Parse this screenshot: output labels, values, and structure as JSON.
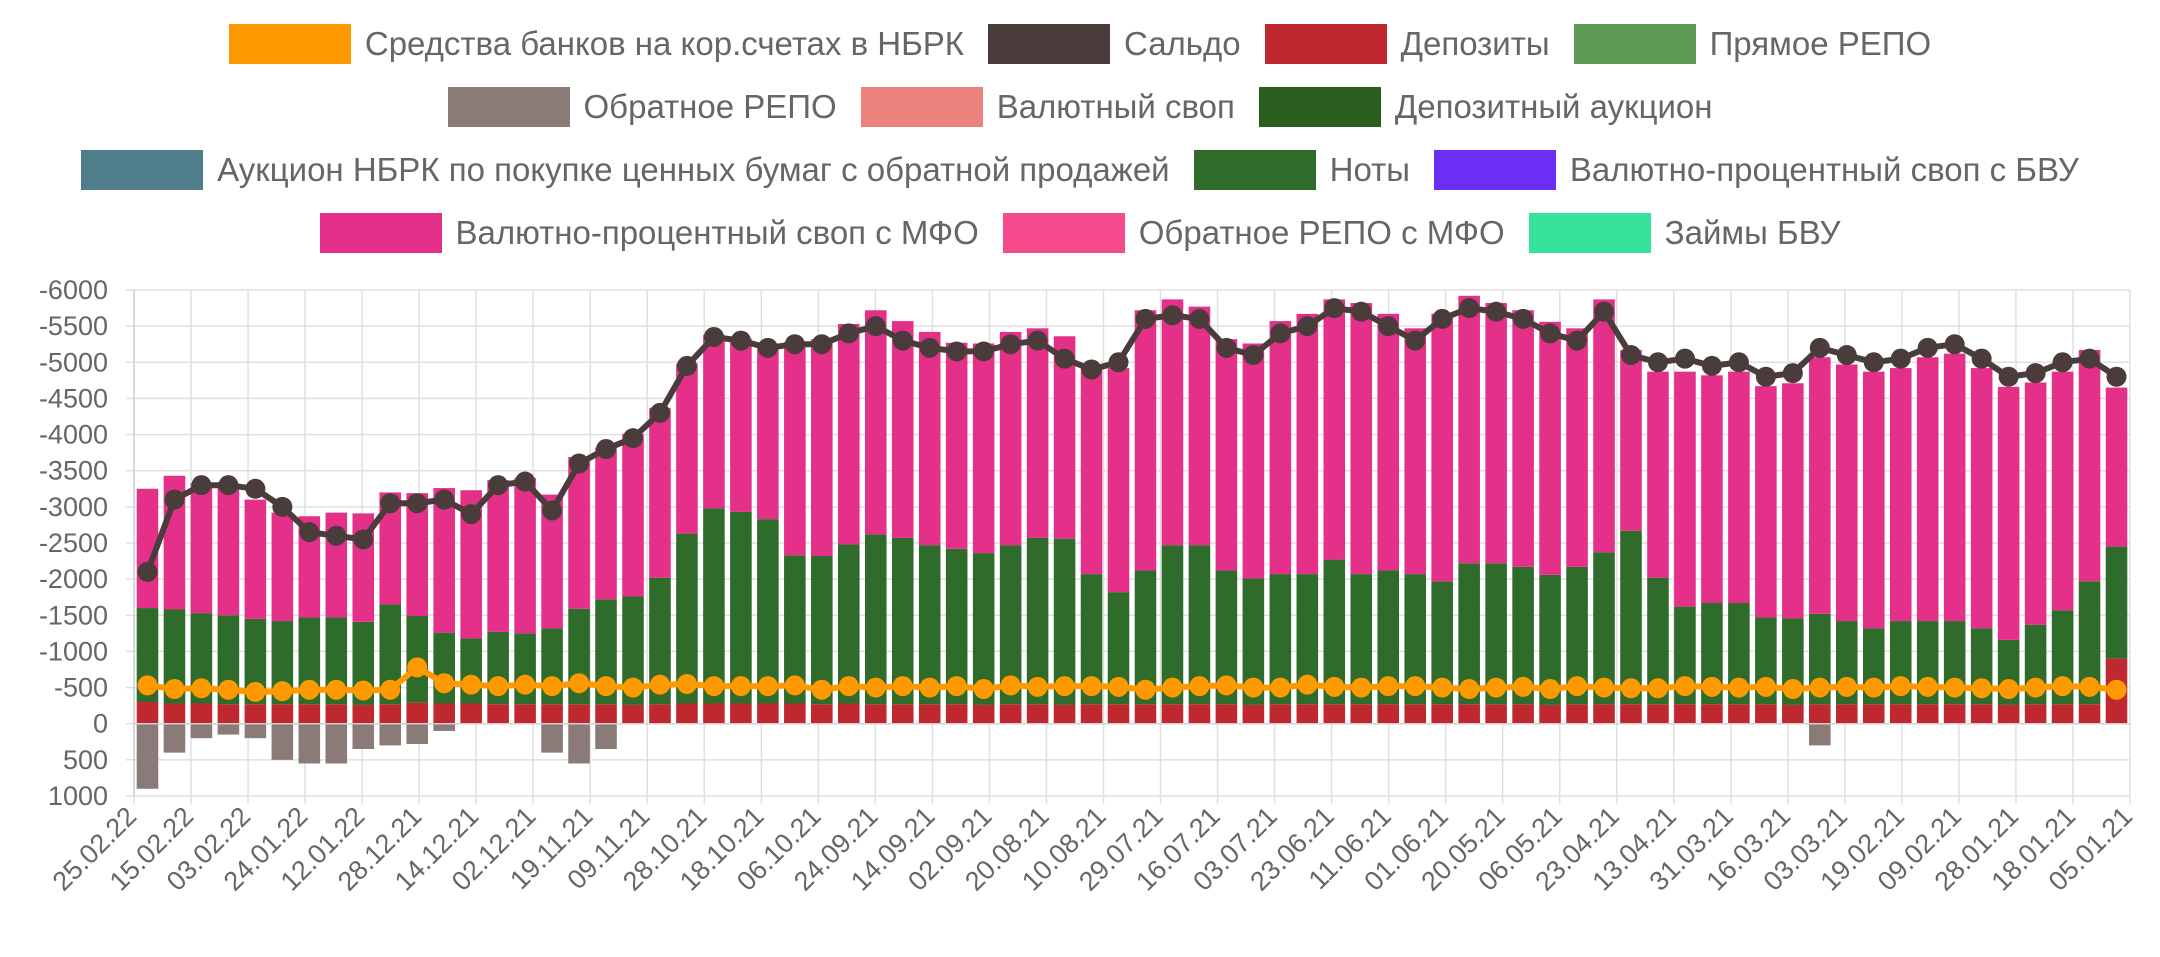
{
  "chart_data": {
    "type": "bar",
    "stacked": true,
    "title": "",
    "xlabel": "",
    "ylabel": "",
    "y_reversed": true,
    "ylim": [
      1000,
      -6000
    ],
    "yticks": [
      -6000,
      -5500,
      -5000,
      -4500,
      -4000,
      -3500,
      -3000,
      -2500,
      -2000,
      -1500,
      -1000,
      -500,
      0,
      500,
      1000
    ],
    "grid": true,
    "legend_position": "top",
    "x_tick_labels": [
      "25.02.22",
      "15.02.22",
      "03.02.22",
      "24.01.22",
      "12.01.22",
      "28.12.21",
      "14.12.21",
      "02.12.21",
      "19.11.21",
      "09.11.21",
      "28.10.21",
      "18.10.21",
      "06.10.21",
      "24.09.21",
      "14.09.21",
      "02.09.21",
      "20.08.21",
      "10.08.21",
      "29.07.21",
      "16.07.21",
      "03.07.21",
      "23.06.21",
      "11.06.21",
      "01.06.21",
      "20.05.21",
      "06.05.21",
      "23.04.21",
      "13.04.21",
      "31.03.21",
      "16.03.21",
      "03.03.21",
      "19.02.21",
      "09.02.21",
      "28.01.21",
      "18.01.21",
      "05.01.21"
    ],
    "series": [
      {
        "name": "Средства банков на кор.счетах в НБРК",
        "color": "#ff9900",
        "kind": "line",
        "values": [
          -530,
          -480,
          -490,
          -470,
          -440,
          -450,
          -470,
          -470,
          -460,
          -470,
          -780,
          -560,
          -540,
          -520,
          -540,
          -520,
          -560,
          -520,
          -500,
          -540,
          -550,
          -520,
          -520,
          -520,
          -530,
          -470,
          -520,
          -500,
          -520,
          -500,
          -520,
          -480,
          -530,
          -510,
          -520,
          -520,
          -510,
          -470,
          -500,
          -520,
          -530,
          -500,
          -500,
          -540,
          -510,
          -500,
          -520,
          -520,
          -500,
          -480,
          -500,
          -510,
          -480,
          -520,
          -500,
          -490,
          -490,
          -520,
          -510,
          -500,
          -510,
          -480,
          -500,
          -510,
          -500,
          -520,
          -510,
          -500,
          -490,
          -480,
          -500,
          -520,
          -510,
          -470
        ]
      },
      {
        "name": "Сальдо",
        "color": "#4a3c3a",
        "kind": "line",
        "values": [
          -2100,
          -3100,
          -3300,
          -3300,
          -3250,
          -3000,
          -2650,
          -2600,
          -2550,
          -3050,
          -3050,
          -3100,
          -2900,
          -3300,
          -3350,
          -2950,
          -3600,
          -3800,
          -3950,
          -4300,
          -4950,
          -5350,
          -5300,
          -5200,
          -5250,
          -5250,
          -5400,
          -5500,
          -5300,
          -5200,
          -5150,
          -5150,
          -5250,
          -5300,
          -5050,
          -4900,
          -5000,
          -5600,
          -5650,
          -5600,
          -5200,
          -5100,
          -5400,
          -5500,
          -5750,
          -5700,
          -5500,
          -5300,
          -5600,
          -5750,
          -5700,
          -5600,
          -5400,
          -5300,
          -5700,
          -5100,
          -5000,
          -5050,
          -4950,
          -5000,
          -4800,
          -4850,
          -5200,
          -5100,
          -5000,
          -5050,
          -5200,
          -5250,
          -5050,
          -4800,
          -4850,
          -5000,
          -5050,
          -4800
        ]
      },
      {
        "name": "Депозиты",
        "color": "#c0282f",
        "kind": "bar",
        "values": [
          -300,
          -280,
          -280,
          -270,
          -270,
          -270,
          -270,
          -270,
          -260,
          -270,
          -290,
          -280,
          -280,
          -270,
          -270,
          -270,
          -270,
          -270,
          -260,
          -270,
          -280,
          -280,
          -280,
          -280,
          -280,
          -270,
          -280,
          -270,
          -270,
          -270,
          -270,
          -260,
          -270,
          -270,
          -260,
          -270,
          -270,
          -270,
          -270,
          -270,
          -270,
          -260,
          -270,
          -270,
          -270,
          -270,
          -270,
          -270,
          -270,
          -270,
          -270,
          -270,
          -260,
          -270,
          -270,
          -270,
          -270,
          -270,
          -270,
          -270,
          -270,
          -260,
          -270,
          -270,
          -270,
          -270,
          -270,
          -270,
          -270,
          -260,
          -270,
          -270,
          -270,
          -900
        ]
      },
      {
        "name": "Прямое РЕПО",
        "color": "#5f9a56",
        "kind": "bar",
        "values": [
          0,
          0,
          0,
          0,
          0,
          0,
          0,
          0,
          0,
          0,
          0,
          0,
          0,
          0,
          0,
          0,
          0,
          0,
          0,
          0,
          0,
          0,
          0,
          0,
          0,
          0,
          0,
          0,
          0,
          0,
          0,
          0,
          0,
          0,
          0,
          0,
          0,
          0,
          0,
          0,
          0,
          0,
          0,
          0,
          0,
          0,
          0,
          0,
          0,
          0,
          0,
          0,
          0,
          0,
          0,
          0,
          0,
          0,
          0,
          0,
          0,
          0,
          0,
          0,
          0,
          0,
          0,
          0,
          0,
          0,
          0,
          0,
          0,
          0
        ]
      },
      {
        "name": "Обратное РЕПО",
        "color": "#8a7a78",
        "kind": "bar",
        "values": [
          900,
          400,
          200,
          150,
          200,
          500,
          550,
          550,
          350,
          300,
          280,
          100,
          0,
          0,
          0,
          400,
          550,
          350,
          0,
          0,
          0,
          0,
          0,
          0,
          0,
          0,
          0,
          0,
          0,
          0,
          0,
          0,
          0,
          0,
          0,
          0,
          0,
          0,
          0,
          0,
          0,
          0,
          0,
          0,
          0,
          0,
          0,
          0,
          0,
          0,
          0,
          0,
          0,
          0,
          0,
          0,
          0,
          0,
          0,
          0,
          0,
          0,
          300,
          0,
          0,
          0,
          0,
          0,
          0,
          0,
          0,
          0,
          0,
          0
        ]
      },
      {
        "name": "Валютный своп",
        "color": "#e8827a",
        "kind": "bar",
        "values": [
          0,
          0,
          0,
          0,
          0,
          0,
          0,
          0,
          0,
          0,
          0,
          0,
          0,
          0,
          0,
          0,
          0,
          0,
          0,
          0,
          0,
          0,
          0,
          0,
          0,
          0,
          0,
          0,
          0,
          0,
          0,
          0,
          0,
          0,
          0,
          0,
          0,
          0,
          0,
          0,
          0,
          0,
          0,
          0,
          0,
          0,
          0,
          0,
          0,
          0,
          0,
          0,
          0,
          0,
          0,
          0,
          0,
          0,
          0,
          0,
          0,
          0,
          0,
          0,
          0,
          0,
          0,
          0,
          0,
          0,
          0,
          0,
          0,
          0
        ]
      },
      {
        "name": "Депозитный аукцион",
        "color": "#2a5e1f",
        "kind": "bar",
        "values": [
          0,
          0,
          0,
          0,
          0,
          0,
          0,
          0,
          0,
          0,
          0,
          0,
          0,
          0,
          0,
          0,
          0,
          0,
          0,
          0,
          0,
          0,
          0,
          0,
          0,
          0,
          0,
          0,
          0,
          0,
          0,
          0,
          0,
          0,
          0,
          0,
          0,
          0,
          0,
          0,
          0,
          0,
          0,
          0,
          0,
          0,
          0,
          0,
          0,
          0,
          0,
          0,
          0,
          0,
          0,
          0,
          0,
          0,
          0,
          0,
          0,
          0,
          0,
          0,
          0,
          0,
          0,
          0,
          0,
          0,
          0,
          0,
          0,
          0
        ]
      },
      {
        "name": "Аукцион НБРК по покупке ценных бумаг с обратной продажей",
        "color": "#4f7d8a",
        "kind": "bar",
        "values": [
          0,
          0,
          0,
          0,
          0,
          0,
          0,
          0,
          0,
          0,
          0,
          0,
          0,
          0,
          0,
          0,
          0,
          0,
          0,
          0,
          0,
          0,
          0,
          0,
          0,
          0,
          0,
          0,
          0,
          0,
          0,
          0,
          0,
          0,
          0,
          0,
          0,
          0,
          0,
          0,
          0,
          0,
          0,
          0,
          0,
          0,
          0,
          0,
          0,
          0,
          0,
          0,
          0,
          0,
          0,
          0,
          0,
          0,
          0,
          0,
          0,
          0,
          0,
          0,
          0,
          0,
          0,
          0,
          0,
          0,
          0,
          0,
          0,
          0
        ]
      },
      {
        "name": "Ноты",
        "color": "#2f6b2a",
        "kind": "bar",
        "values": [
          -1300,
          -1300,
          -1250,
          -1230,
          -1180,
          -1150,
          -1200,
          -1200,
          -1150,
          -1380,
          -1200,
          -980,
          -900,
          -1000,
          -980,
          -1050,
          -1320,
          -1450,
          -1500,
          -1750,
          -2350,
          -2700,
          -2650,
          -2550,
          -2050,
          -2050,
          -2200,
          -2350,
          -2300,
          -2200,
          -2150,
          -2100,
          -2200,
          -2300,
          -2300,
          -1800,
          -1550,
          -1850,
          -2200,
          -2200,
          -1850,
          -1750,
          -1800,
          -1800,
          -2000,
          -1800,
          -1850,
          -1800,
          -1700,
          -1950,
          -1950,
          -1900,
          -1800,
          -1900,
          -2100,
          -2400,
          -1750,
          -1350,
          -1400,
          -1400,
          -1200,
          -1200,
          -1250,
          -1150,
          -1050,
          -1150,
          -1150,
          -1150,
          -1050,
          -900,
          -1100,
          -1300,
          -1700,
          -1550
        ]
      },
      {
        "name": "Валютно-процентный своп с БВУ",
        "color": "#6a2ef5",
        "kind": "bar",
        "values": [
          0,
          0,
          0,
          0,
          0,
          0,
          0,
          0,
          0,
          0,
          0,
          0,
          0,
          0,
          0,
          0,
          0,
          0,
          0,
          0,
          0,
          0,
          0,
          0,
          0,
          0,
          0,
          0,
          0,
          0,
          0,
          0,
          0,
          0,
          0,
          0,
          0,
          0,
          0,
          0,
          0,
          0,
          0,
          0,
          0,
          0,
          0,
          0,
          0,
          0,
          0,
          0,
          0,
          0,
          0,
          0,
          0,
          0,
          0,
          0,
          0,
          0,
          0,
          0,
          0,
          0,
          0,
          0,
          0,
          0,
          0,
          0,
          0,
          0
        ]
      },
      {
        "name": "Валютно-процентный своп с МФО",
        "color": "#e5308a",
        "kind": "bar",
        "values": [
          -1650,
          -1850,
          -1800,
          -1770,
          -1650,
          -1500,
          -1400,
          -1450,
          -1500,
          -1550,
          -1700,
          -2000,
          -2050,
          -2100,
          -2150,
          -1850,
          -2100,
          -2100,
          -2250,
          -2350,
          -2350,
          -2400,
          -2400,
          -2400,
          -2950,
          -3000,
          -3050,
          -3100,
          -3000,
          -2950,
          -2850,
          -2900,
          -2950,
          -2900,
          -2800,
          -2900,
          -3100,
          -3600,
          -3400,
          -3300,
          -3200,
          -3250,
          -3500,
          -3600,
          -3600,
          -3750,
          -3550,
          -3400,
          -3700,
          -3700,
          -3600,
          -3550,
          -3500,
          -3300,
          -3500,
          -2500,
          -2850,
          -3250,
          -3150,
          -3200,
          -3200,
          -3250,
          -3550,
          -3550,
          -3550,
          -3500,
          -3650,
          -3700,
          -3600,
          -3500,
          -3350,
          -3300,
          -3200,
          -2200
        ]
      },
      {
        "name": "Обратное РЕПО с МФО",
        "color": "#f54a8c",
        "kind": "bar",
        "values": [
          0,
          0,
          0,
          0,
          0,
          0,
          0,
          0,
          0,
          0,
          0,
          0,
          0,
          0,
          0,
          0,
          0,
          0,
          0,
          0,
          0,
          0,
          0,
          0,
          0,
          0,
          0,
          0,
          0,
          0,
          0,
          0,
          0,
          0,
          0,
          0,
          0,
          0,
          0,
          0,
          0,
          0,
          0,
          0,
          0,
          0,
          0,
          0,
          0,
          0,
          0,
          0,
          0,
          0,
          0,
          0,
          0,
          0,
          0,
          0,
          0,
          0,
          0,
          0,
          0,
          0,
          0,
          0,
          0,
          0,
          0,
          0,
          0,
          0
        ]
      },
      {
        "name": "Займы БВУ",
        "color": "#35e39a",
        "kind": "bar",
        "values": [
          0,
          0,
          0,
          0,
          0,
          0,
          0,
          0,
          0,
          0,
          0,
          0,
          0,
          0,
          0,
          0,
          0,
          0,
          0,
          0,
          0,
          0,
          0,
          0,
          0,
          0,
          0,
          0,
          0,
          0,
          0,
          0,
          0,
          0,
          0,
          0,
          0,
          0,
          0,
          0,
          0,
          0,
          0,
          0,
          0,
          0,
          0,
          0,
          0,
          0,
          0,
          0,
          0,
          0,
          0,
          0,
          0,
          0,
          0,
          0,
          0,
          0,
          0,
          0,
          0,
          0,
          0,
          0,
          0,
          0,
          0,
          0,
          0,
          0
        ]
      }
    ]
  }
}
